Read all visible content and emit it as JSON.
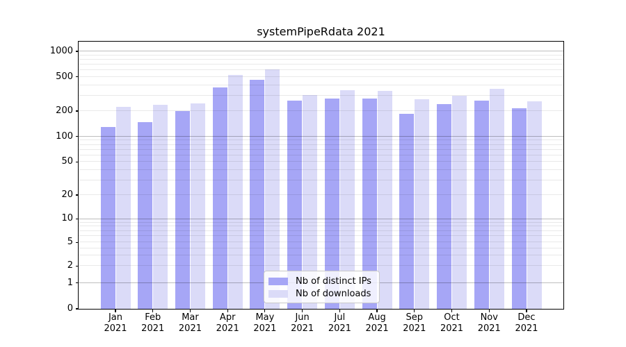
{
  "title": "systemPipeRdata 2021",
  "chart_data": {
    "type": "bar",
    "title": "systemPipeRdata 2021",
    "x_tick_year": "2021",
    "categories": [
      "Jan",
      "Feb",
      "Mar",
      "Apr",
      "May",
      "Jun",
      "Jul",
      "Aug",
      "Sep",
      "Oct",
      "Nov",
      "Dec"
    ],
    "series": [
      {
        "name": "Nb of distinct IPs",
        "color": "#a6a6f6",
        "values": [
          129,
          148,
          199,
          377,
          463,
          265,
          279,
          281,
          187,
          243,
          265,
          215
        ]
      },
      {
        "name": "Nb of downloads",
        "color": "#dbdbf8",
        "values": [
          224,
          237,
          246,
          525,
          614,
          307,
          350,
          341,
          274,
          301,
          363,
          258
        ]
      }
    ],
    "y_axis": {
      "ticks": [
        0,
        1,
        2,
        5,
        10,
        20,
        50,
        100,
        200,
        500,
        1000
      ],
      "scale": "log-like (symlog), 0 at baseline",
      "range_top": 1300
    },
    "grid": {
      "major_lines": [
        1,
        10,
        100,
        1000
      ],
      "minor_lines": [
        2,
        3,
        4,
        5,
        6,
        7,
        8,
        9,
        20,
        30,
        40,
        50,
        60,
        70,
        80,
        90,
        200,
        300,
        400,
        500,
        600,
        700,
        800,
        900
      ],
      "drawn_over_bars": true
    },
    "legend": {
      "position": "lower center",
      "entries": [
        "Nb of distinct IPs",
        "Nb of downloads"
      ]
    },
    "y_scale_anchors": [
      [
        0,
        0
      ],
      [
        1,
        0.0969
      ],
      [
        2,
        0.1603
      ],
      [
        5,
        0.2486
      ],
      [
        10,
        0.3364
      ],
      [
        20,
        0.426
      ],
      [
        50,
        0.5499
      ],
      [
        100,
        0.6449
      ],
      [
        200,
        0.7403
      ],
      [
        500,
        0.8683
      ],
      [
        1000,
        0.9636
      ]
    ]
  },
  "colors": {
    "background": "#ffffff",
    "spine": "#000000",
    "grid_major": "rgba(0,0,0,0.26)",
    "grid_minor": "rgba(0,0,0,0.085)",
    "text": "#000000",
    "legend_border": "#c8c8c8"
  }
}
